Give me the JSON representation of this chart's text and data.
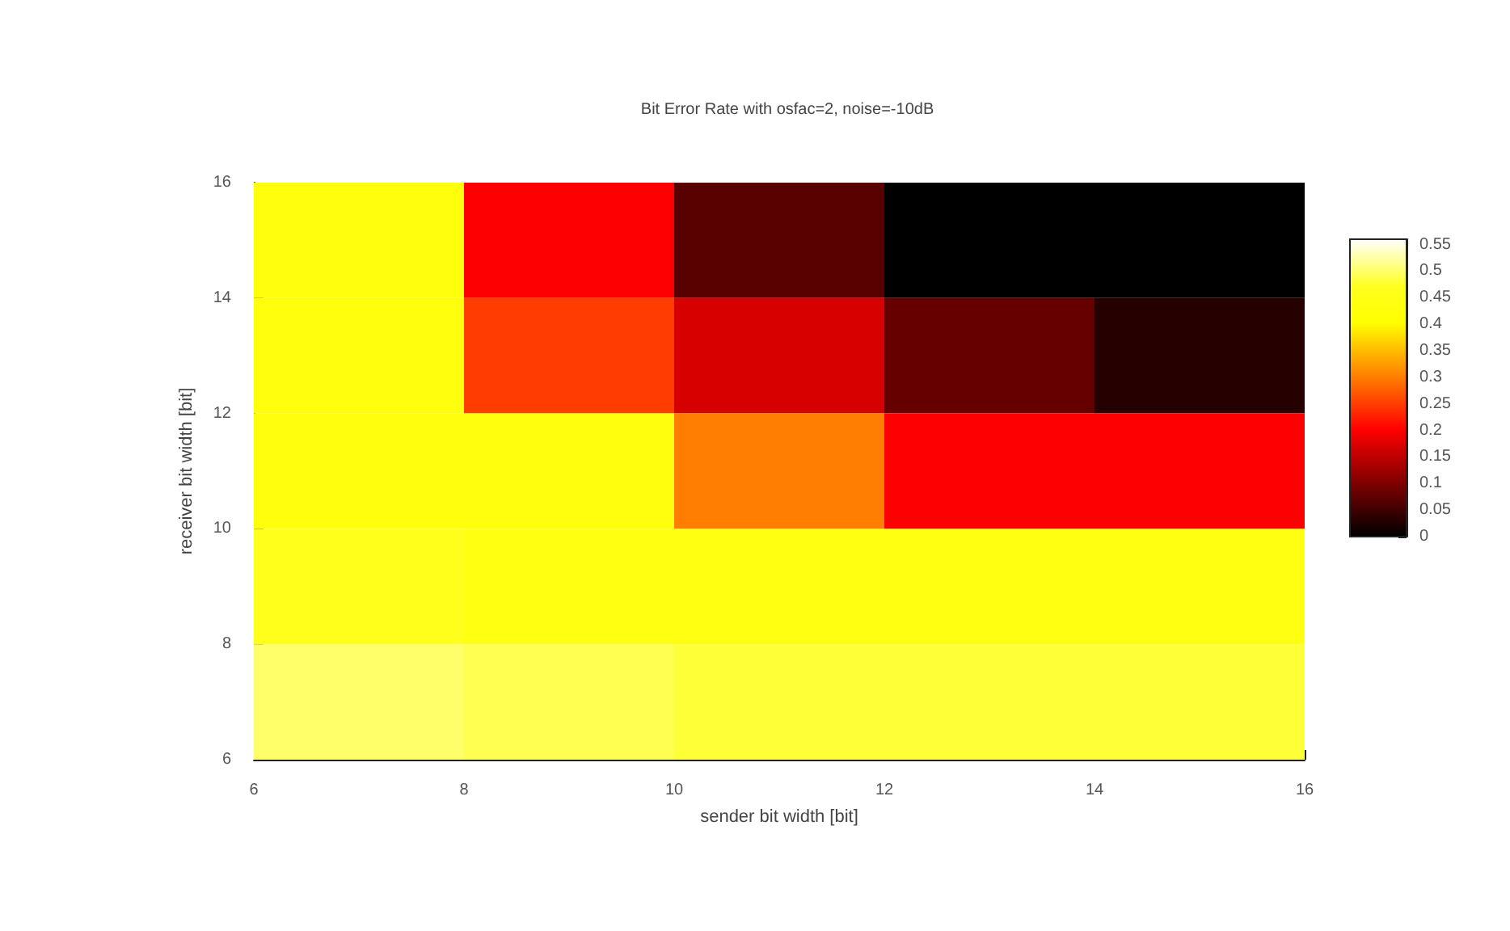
{
  "chart_data": {
    "type": "heatmap",
    "title": "Bit Error Rate with osfac=2, noise=-10dB",
    "xlabel": "sender bit width [bit]",
    "ylabel": "receiver bit width [bit]",
    "xlim": [
      6,
      16
    ],
    "xticks": [
      6,
      8,
      10,
      12,
      14,
      16
    ],
    "ylim": [
      6,
      16
    ],
    "yticks": [
      6,
      8,
      10,
      12,
      14,
      16
    ],
    "cells": [
      [
        0.43,
        0.2,
        0.07,
        0,
        0
      ],
      [
        0.43,
        0.25,
        0.17,
        0.08,
        0.03
      ],
      [
        0.43,
        0.43,
        0.3,
        0.2,
        0.2
      ],
      [
        0.46,
        0.44,
        0.44,
        0.44,
        0.44
      ],
      [
        0.5,
        0.49,
        0.48,
        0.48,
        0.48
      ]
    ],
    "clim": [
      0,
      0.56
    ],
    "cticks": [
      0,
      0.05,
      0.1,
      0.15,
      0.2,
      0.25,
      0.3,
      0.35,
      0.4,
      0.45,
      0.5,
      0.55
    ],
    "grid": false
  }
}
